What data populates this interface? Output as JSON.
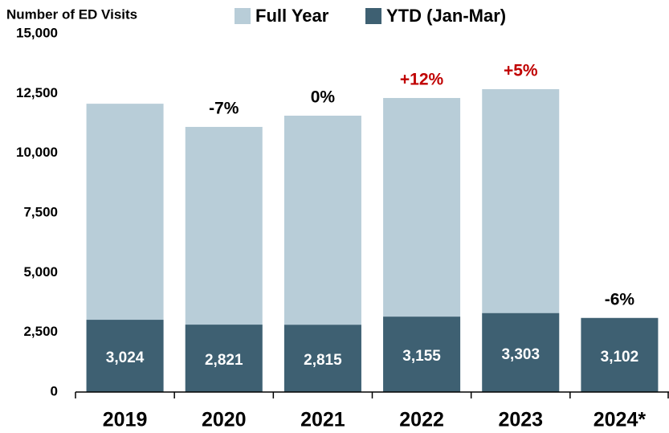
{
  "chart_data": {
    "type": "bar",
    "y_axis_label": "Number of ED Visits",
    "categories": [
      "2019",
      "2020",
      "2021",
      "2022",
      "2023",
      "2024*"
    ],
    "series": [
      {
        "name": "Full Year",
        "color": "#b8cdd8",
        "values": [
          12070,
          11100,
          11570,
          12310,
          12680,
          null
        ]
      },
      {
        "name": "YTD (Jan-Mar)",
        "color": "#3e6072",
        "values": [
          3024,
          2821,
          2815,
          3155,
          3303,
          3102
        ],
        "value_labels": [
          "3,024",
          "2,821",
          "2,815",
          "3,155",
          "3,303",
          "3,102"
        ]
      }
    ],
    "annotations": [
      null,
      "-7%",
      "0%",
      "+12%",
      "+5%",
      "-6%"
    ],
    "annotation_colors": [
      null,
      "#000000",
      "#000000",
      "#c00000",
      "#c00000",
      "#000000"
    ],
    "ylim": [
      0,
      15000
    ],
    "yticks": [
      0,
      {
        "value": 2500,
        "label": "2,500"
      },
      {
        "value": 5000,
        "label": "5,000"
      },
      {
        "value": 7500,
        "label": "7,500"
      },
      {
        "value": 10000,
        "label": "10,000"
      },
      {
        "value": 12500,
        "label": "12,500"
      },
      {
        "value": 15000,
        "label": "15,000"
      }
    ],
    "grid": false,
    "legend": "top"
  }
}
